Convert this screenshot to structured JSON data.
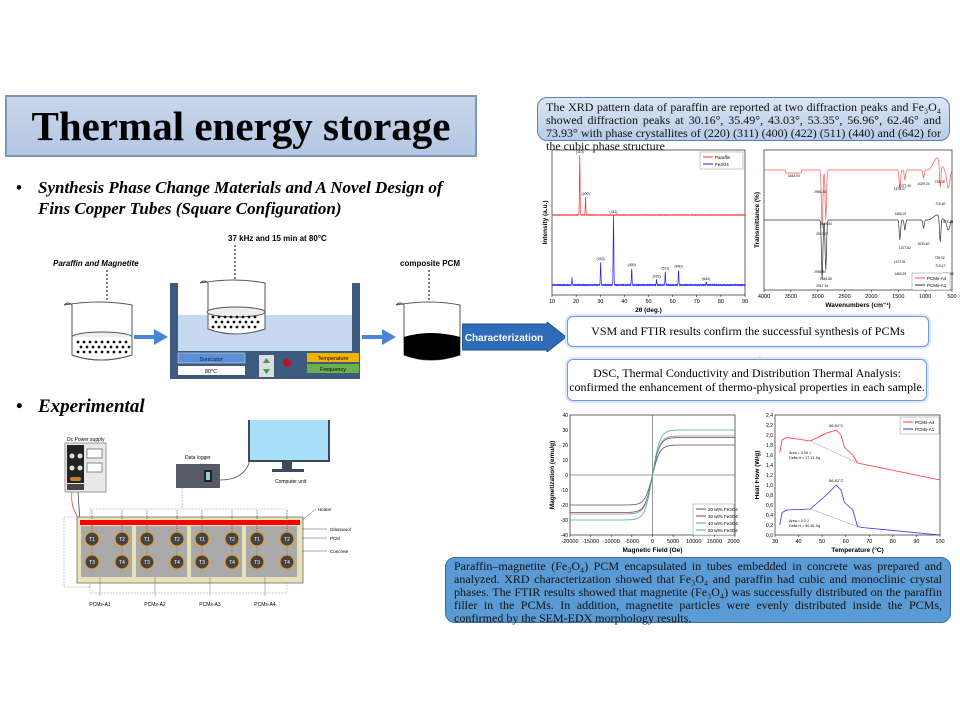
{
  "title": "Thermal energy storage",
  "bullets": [
    {
      "text": "Synthesis Phase Change Materials and A Novel Design of Fins Copper Tubes (Square Configuration)"
    },
    {
      "text": "Experimental"
    }
  ],
  "synthesis": {
    "start_label": "Paraffin and Magnetite",
    "condition_label": "37 kHz and 15 min at  80°C",
    "end_label": "composite PCM",
    "sonicator_label": "Sonicator",
    "temp_display": "80°C",
    "temperature_label": "Temperature",
    "frequency_label": "Frequency",
    "colors": {
      "bath": "#3e5a7e",
      "water": "#c6d9f1",
      "sonicator": "#5b8fd6",
      "temperature": "#f4b400",
      "frequency": "#6ab04c",
      "arrow": "#4a86d8"
    }
  },
  "experimental": {
    "power_supply_label": "Dc Power supply",
    "data_logger_label": "Data logger",
    "computer_label": "Computer unit",
    "heater_label": "Heater",
    "glasswool_label": "Glasswool",
    "pcm_label": "PCM",
    "concrete_label": "Concrete",
    "sensors": [
      "T1",
      "T2",
      "T3",
      "T4"
    ],
    "sections": [
      "PCMs-A1",
      "PCMs-A2",
      "PCMs-A3",
      "PCMs-A4"
    ]
  },
  "characterization_label": "Characterization",
  "xrd_text": "The XRD pattern data of paraffin are reported at two diffraction peaks and Fe₃O₄ showed diffraction peaks at 30.16°, 35.49°, 43.03°, 53.35°, 56.96°, 62.46° and 73.93° with phase crystallites of (220) (311) (400) (422) (511) (440) and (642) for the cubic phase structure",
  "vsm_ftir_text": "VSM and FTIR results confirm the successful synthesis of PCMs composites",
  "dsc_text": "DSC, Thermal Conductivity and Distribution Thermal Analysis: confirmed the enhancement of thermo-physical properties in each sample.",
  "summary_text": "Paraffin–magnetite (Fe₃O₄) PCM encapsulated in tubes embedded in concrete was prepared and analyzed. XRD characterization showed that Fe₃O₄ and paraffin had cubic and monoclinic crystal phases. The FTIR results showed that magnetite (Fe₃O₄) was successfully distributed on the paraffin filler in the PCMs. In addition, magnetite particles were evenly distributed inside the PCMs, confirmed by the SEM-EDX morphology results.",
  "chart_data": [
    {
      "type": "line",
      "xlabel": "2θ (deg.)",
      "ylabel": "Intensity (a.u.)",
      "xlim": [
        10,
        90
      ],
      "xticks": [
        "10",
        "20",
        "30",
        "40",
        "50",
        "60",
        "70",
        "80",
        "90"
      ],
      "legend": "top-right",
      "series": [
        {
          "name": "Paraffin",
          "color": "#ff3333",
          "peaks": [
            {
              "x": 21.5,
              "intensity": 100,
              "label": "(110)"
            },
            {
              "x": 23.9,
              "intensity": 30,
              "label": "(200)"
            }
          ]
        },
        {
          "name": "Fe3O4",
          "color": "#2222ff",
          "peaks": [
            {
              "x": 18.3,
              "intensity": 10,
              "label": ""
            },
            {
              "x": 30.16,
              "intensity": 33,
              "label": "(220)"
            },
            {
              "x": 35.49,
              "intensity": 100,
              "label": "(311)"
            },
            {
              "x": 43.03,
              "intensity": 24,
              "label": "(400)"
            },
            {
              "x": 53.35,
              "intensity": 8,
              "label": "(422)"
            },
            {
              "x": 56.96,
              "intensity": 19,
              "label": "(511)"
            },
            {
              "x": 62.46,
              "intensity": 22,
              "label": "(440)"
            },
            {
              "x": 73.93,
              "intensity": 4,
              "label": "(642)"
            }
          ]
        }
      ]
    },
    {
      "type": "line",
      "xlabel": "Wavenumbers (cm⁻¹)",
      "ylabel": "Transmittance (%)",
      "xlim": [
        4000,
        500
      ],
      "xticks": [
        "4000",
        "3500",
        "3000",
        "2500",
        "2000",
        "1500",
        "1000",
        "500"
      ],
      "legend": "bottom-right",
      "series": [
        {
          "name": "PCMs-A4",
          "color": "#ff5555",
          "annotations": [
            "3444.00",
            "2956.28",
            "2917.17",
            "2849.54",
            "1472.27",
            "1460.07",
            "1377.40",
            "1029.24",
            "729.08",
            "719.40",
            "570.84"
          ]
        },
        {
          "name": "PCMs-A1",
          "color": "#333333",
          "annotations": [
            "2956.90",
            "2917.34",
            "2849.85",
            "1472.81",
            "1463.29",
            "1377.82",
            "1033.40",
            "729.32",
            "719.47",
            "565.58"
          ]
        }
      ]
    },
    {
      "type": "line",
      "xlabel": "Magnetic Field (Oe)",
      "ylabel": "Magnetization (emu/g)",
      "xlim": [
        -20000,
        20000
      ],
      "ylim": [
        -40,
        40
      ],
      "xticks": [
        "-20000",
        "-15000",
        "-10000",
        "-5000",
        "0",
        "5000",
        "10000",
        "15000",
        "20000"
      ],
      "yticks": [
        "40",
        "30",
        "20",
        "10",
        "0",
        "-10",
        "-20",
        "-30",
        "-40"
      ],
      "legend": "bottom-right",
      "series": [
        {
          "name": "20 wt% Fe3O4",
          "color": "#555555",
          "saturation": 20
        },
        {
          "name": "30 wt% Fe3O4",
          "color": "#b03040",
          "saturation": 25
        },
        {
          "name": "40 wt% Fe3O4",
          "color": "#5a9bd5",
          "saturation": 26
        },
        {
          "name": "50 wt% Fe3O4",
          "color": "#4caf80",
          "saturation": 30
        }
      ]
    },
    {
      "type": "line",
      "xlabel": "Temperature (°C)",
      "ylabel": "Heat Flow (W/g)",
      "xlim": [
        30,
        100
      ],
      "ylim": [
        0.0,
        2.4
      ],
      "xticks": [
        "30",
        "40",
        "50",
        "60",
        "70",
        "80",
        "90",
        "100"
      ],
      "yticks": [
        "2,4",
        "2,2",
        "2,0",
        "1,8",
        "1,6",
        "1,4",
        "1,2",
        "1,0",
        "0,8",
        "0,6",
        "0,4",
        "0,2",
        "0,0"
      ],
      "legend": "top-right",
      "series": [
        {
          "name": "PCMs-A4",
          "color": "#ff3333",
          "peak_label": "56.61°C",
          "area": "Area = 0.09 J",
          "delta_h": "Delta H = 17.13 J/g"
        },
        {
          "name": "PCMs-A1",
          "color": "#3333ff",
          "peak_label": "56.61°C",
          "area": "Area = 0.3 J",
          "delta_h": "Delta H = 50.26 J/g"
        }
      ]
    }
  ]
}
